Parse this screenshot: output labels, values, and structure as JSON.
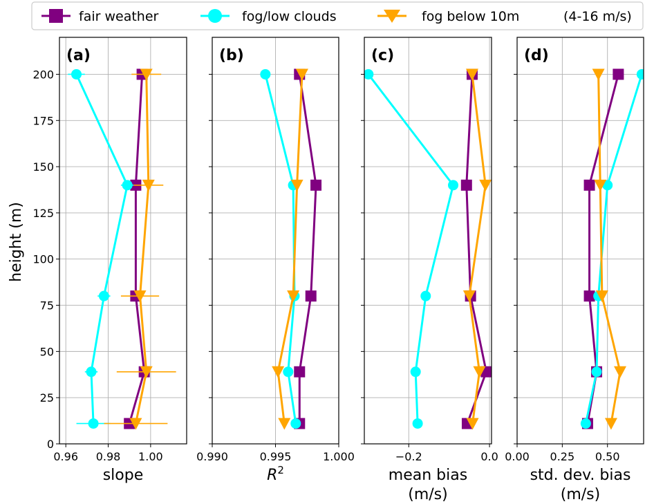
{
  "legend": {
    "items": [
      "fair weather",
      "fog/low clouds",
      "fog below 10m"
    ],
    "note": "(4-16 m/s)"
  },
  "chart_data": [
    {
      "type": "line",
      "panel_label": "(a)",
      "xlabel": "slope",
      "ylabel": "height (m)",
      "xlim": [
        0.957,
        1.017
      ],
      "ylim": [
        0,
        220
      ],
      "xticks": [
        "0.96",
        "0.98",
        "1.00"
      ],
      "xtick_values": [
        0.96,
        0.98,
        1.0
      ],
      "yticks": [
        "0",
        "25",
        "50",
        "75",
        "100",
        "125",
        "150",
        "175",
        "200"
      ],
      "ytick_values": [
        0,
        25,
        50,
        75,
        100,
        125,
        150,
        175,
        200
      ],
      "grid": true,
      "series": [
        {
          "name": "fair weather",
          "color": "#800080",
          "marker": "square",
          "y": [
            200,
            140,
            80,
            39,
            11
          ],
          "x": [
            0.996,
            0.993,
            0.993,
            0.997,
            0.99
          ]
        },
        {
          "name": "fog/low clouds",
          "color": "#00ffff",
          "marker": "circle",
          "y": [
            200,
            140,
            80,
            39,
            11
          ],
          "x": [
            0.965,
            0.989,
            0.978,
            0.972,
            0.973
          ],
          "xerr": [
            0.004,
            0.003,
            0.003,
            0.003,
            0.008
          ]
        },
        {
          "name": "fog below 10m",
          "color": "#ffa500",
          "marker": "triangle-down",
          "y": [
            200,
            140,
            80,
            39,
            11
          ],
          "x": [
            0.998,
            0.999,
            0.995,
            0.998,
            0.993
          ],
          "xerr": [
            0.007,
            0.007,
            0.009,
            0.014,
            0.015
          ]
        }
      ]
    },
    {
      "type": "line",
      "panel_label": "(b)",
      "xlabel": "R²",
      "xlim": [
        0.99,
        1.0
      ],
      "ylim": [
        0,
        220
      ],
      "xticks": [
        "0.990",
        "0.995",
        "1.000"
      ],
      "xtick_values": [
        0.99,
        0.995,
        1.0
      ],
      "grid": true,
      "series": [
        {
          "name": "fair weather",
          "color": "#800080",
          "marker": "square",
          "y": [
            200,
            140,
            80,
            39,
            11
          ],
          "x": [
            0.9969,
            0.9982,
            0.9978,
            0.9969,
            0.9969
          ]
        },
        {
          "name": "fog/low clouds",
          "color": "#00ffff",
          "marker": "circle",
          "y": [
            200,
            140,
            80,
            39,
            11
          ],
          "x": [
            0.9942,
            0.9964,
            0.9965,
            0.996,
            0.9966
          ]
        },
        {
          "name": "fog below 10m",
          "color": "#ffa500",
          "marker": "triangle-down",
          "y": [
            200,
            140,
            80,
            39,
            11
          ],
          "x": [
            0.9971,
            0.9967,
            0.9964,
            0.9952,
            0.9957
          ]
        }
      ]
    },
    {
      "type": "line",
      "panel_label": "(c)",
      "xlabel": "mean bias",
      "xlabel2": "(m/s)",
      "xlim": [
        -0.31,
        0.005
      ],
      "ylim": [
        0,
        220
      ],
      "xticks": [
        "−0.2",
        "0.0"
      ],
      "xtick_values": [
        -0.2,
        0.0
      ],
      "grid": true,
      "series": [
        {
          "name": "fair weather",
          "color": "#800080",
          "marker": "square",
          "y": [
            200,
            140,
            80,
            39,
            11
          ],
          "x": [
            -0.043,
            -0.057,
            -0.047,
            -0.008,
            -0.055
          ]
        },
        {
          "name": "fog/low clouds",
          "color": "#00ffff",
          "marker": "circle",
          "y": [
            200,
            140,
            80,
            39,
            11
          ],
          "x": [
            -0.3,
            -0.09,
            -0.158,
            -0.183,
            -0.178
          ]
        },
        {
          "name": "fog below 10m",
          "color": "#ffa500",
          "marker": "triangle-down",
          "y": [
            200,
            140,
            80,
            39,
            11
          ],
          "x": [
            -0.043,
            -0.01,
            -0.05,
            -0.025,
            -0.042
          ]
        }
      ]
    },
    {
      "type": "line",
      "panel_label": "(d)",
      "xlabel": "std. dev. bias",
      "xlabel2": "(m/s)",
      "xlim": [
        0.0,
        0.7
      ],
      "ylim": [
        0,
        220
      ],
      "xticks": [
        "0.00",
        "0.25",
        "0.50"
      ],
      "xtick_values": [
        0.0,
        0.25,
        0.5
      ],
      "grid": true,
      "series": [
        {
          "name": "fair weather",
          "color": "#800080",
          "marker": "square",
          "y": [
            200,
            140,
            80,
            39,
            11
          ],
          "x": [
            0.56,
            0.4,
            0.4,
            0.44,
            0.39
          ]
        },
        {
          "name": "fog/low clouds",
          "color": "#00ffff",
          "marker": "circle",
          "y": [
            200,
            140,
            80,
            39,
            11
          ],
          "x": [
            0.69,
            0.5,
            0.45,
            0.44,
            0.38
          ]
        },
        {
          "name": "fog below 10m",
          "color": "#ffa500",
          "marker": "triangle-down",
          "y": [
            200,
            140,
            80,
            39,
            11
          ],
          "x": [
            0.45,
            0.46,
            0.47,
            0.57,
            0.52
          ]
        }
      ]
    }
  ]
}
